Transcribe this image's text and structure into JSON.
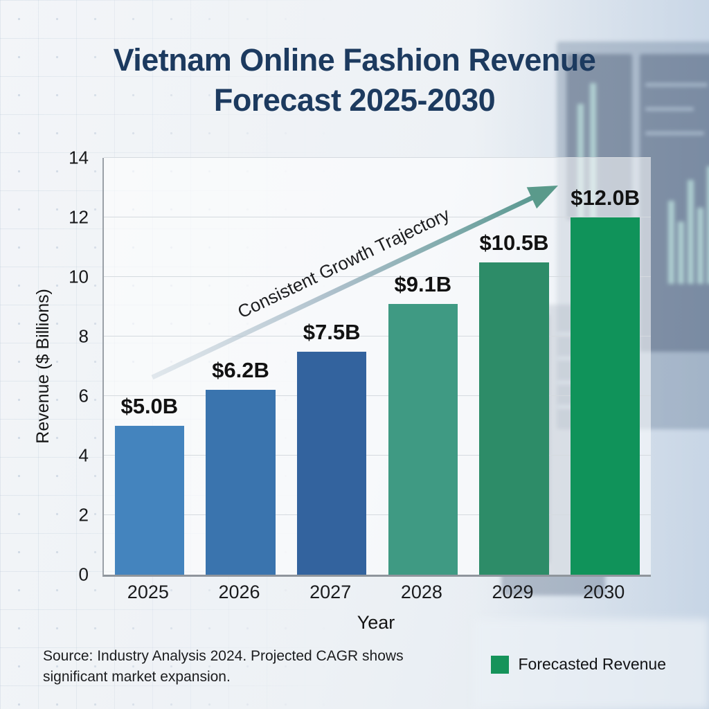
{
  "title": {
    "line1": "Vietnam Online Fashion Revenue",
    "line2": "Forecast 2025-2030",
    "color": "#1c3a5f"
  },
  "chart_data": {
    "type": "bar",
    "categories": [
      "2025",
      "2026",
      "2027",
      "2028",
      "2029",
      "2030"
    ],
    "values": [
      5.0,
      6.2,
      7.5,
      9.1,
      10.5,
      12.0
    ],
    "bar_labels": [
      "$5.0B",
      "$6.2B",
      "$7.5B",
      "$9.1B",
      "$10.5B",
      "$12.0B"
    ],
    "bar_colors": [
      "#4484be",
      "#3a74ae",
      "#33639e",
      "#3f9a83",
      "#2d8c68",
      "#10935a"
    ],
    "title": "Vietnam Online Fashion Revenue Forecast 2025-2030",
    "xlabel": "Year",
    "ylabel": "Revenue ($ Billions)",
    "ylim": [
      0,
      14
    ],
    "yticks": [
      0,
      2,
      4,
      6,
      8,
      10,
      12,
      14
    ],
    "grid": true,
    "legend_position": "bottom-right",
    "annotation": {
      "text": "Consistent Growth Trajectory",
      "arrow_start_color": "#c3d0da",
      "arrow_end_color": "#4f9489"
    }
  },
  "legend": {
    "label": "Forecasted Revenue",
    "swatch_color": "#15935a"
  },
  "footer": {
    "source_line1": "Source: Industry Analysis 2024. Projected CAGR shows",
    "source_line2": "significant market expansion."
  }
}
